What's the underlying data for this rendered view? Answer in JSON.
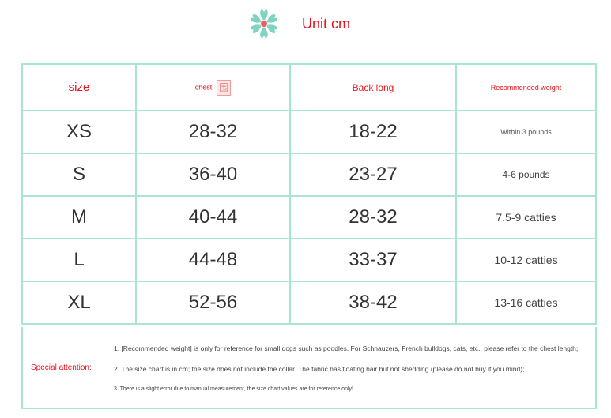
{
  "header": {
    "unit": "Unit cm",
    "icon": "flower-icon"
  },
  "colors": {
    "accent": "#e8121c",
    "border": "#a9e4d2",
    "flower": "#7fd4c1"
  },
  "table": {
    "headers": [
      "size",
      "chest",
      "Back long",
      "Recommended weight"
    ],
    "chest_stamp": "围",
    "rows": [
      [
        "XS",
        "28-32",
        "18-22",
        "Within 3 pounds"
      ],
      [
        "S",
        "36-40",
        "23-27",
        "4-6 pounds"
      ],
      [
        "M",
        "40-44",
        "28-32",
        "7.5-9 catties"
      ],
      [
        "L",
        "44-48",
        "33-37",
        "10-12 catties"
      ],
      [
        "XL",
        "52-56",
        "38-42",
        "13-16 catties"
      ]
    ]
  },
  "notes": {
    "label": "Special attention:",
    "items": [
      "1. [Recommended weight] is only for reference for small dogs such as poodles. For Schnauzers, French bulldogs, cats, etc., please refer to the chest length;",
      "2. The size chart is in cm; the size does not include the collar. The fabric has floating hair but not shedding (please do not buy if you mind);",
      "3. There is a slight error due to manual measurement, the size chart values are for reference only!"
    ]
  }
}
